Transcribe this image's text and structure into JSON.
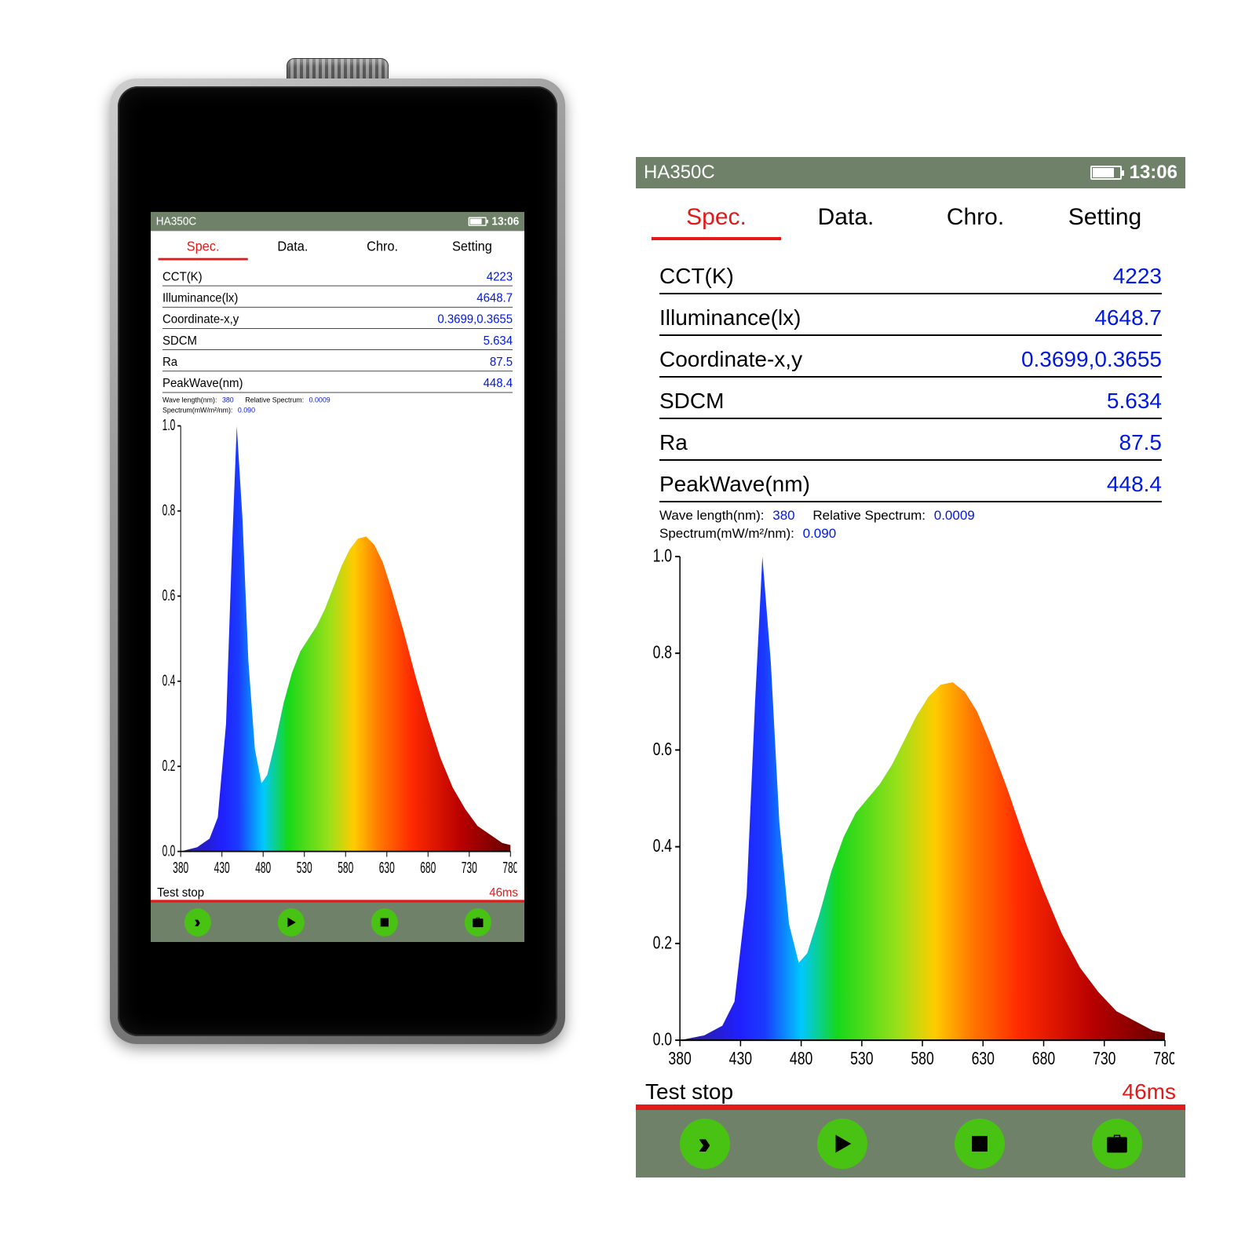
{
  "header": {
    "device_model": "HA350C",
    "battery_percent": 80,
    "clock": "13:06"
  },
  "colors": {
    "status_bar_bg": "#6f8168",
    "status_bar_text": "#ffffff",
    "tab_active": "#e21a1a",
    "tab_inactive": "#000000",
    "value_text": "#0018e0",
    "button_bg": "#49c313",
    "button_icon": "#000000",
    "test_underline": "#e21a1a",
    "device_face": "#000000",
    "device_shell_gradient": [
      "#cfcfcf",
      "#9b9b9b",
      "#7a7a7a",
      "#5e5e5e"
    ],
    "background": "#ffffff",
    "row_divider": "#000000"
  },
  "tabs": {
    "items": [
      "Spec.",
      "Data.",
      "Chro.",
      "Setting"
    ],
    "active_index": 0
  },
  "readings": [
    {
      "label": "CCT(K)",
      "value": "4223"
    },
    {
      "label": "Illuminance(lx)",
      "value": "4648.7"
    },
    {
      "label": "Coordinate-x,y",
      "value": "0.3699,0.3655"
    },
    {
      "label": "SDCM",
      "value": "5.634"
    },
    {
      "label": "Ra",
      "value": "87.5"
    },
    {
      "label": "PeakWave(nm)",
      "value": "448.4"
    }
  ],
  "mini_labels": {
    "wavelength_label": "Wave length(nm):",
    "wavelength_value": "380",
    "relative_spectrum_label": "Relative Spectrum:",
    "relative_spectrum_value": "0.0009",
    "spectrum_label": "Spectrum(mW/m²/nm):",
    "spectrum_value": "0.090"
  },
  "spectrum_chart": {
    "type": "area",
    "xlim": [
      380,
      780
    ],
    "ylim": [
      0,
      1.0
    ],
    "xtick_step": 50,
    "ytick_step": 0.2,
    "x_ticks": [
      380,
      430,
      480,
      530,
      580,
      630,
      680,
      730,
      780
    ],
    "y_ticks": [
      0.0,
      0.2,
      0.4,
      0.6,
      0.8,
      1.0
    ],
    "axis_color": "#000000",
    "axis_linewidth": 1.5,
    "tick_font_size_pt": 11,
    "area_gradient_stops": [
      {
        "nm": 380,
        "color": "#2e1b8a"
      },
      {
        "nm": 430,
        "color": "#2020ff"
      },
      {
        "nm": 450,
        "color": "#1a3aff"
      },
      {
        "nm": 480,
        "color": "#00c8ff"
      },
      {
        "nm": 510,
        "color": "#16d81a"
      },
      {
        "nm": 560,
        "color": "#9ae01a"
      },
      {
        "nm": 590,
        "color": "#ffcc00"
      },
      {
        "nm": 620,
        "color": "#ff7a00"
      },
      {
        "nm": 660,
        "color": "#ff2a00"
      },
      {
        "nm": 720,
        "color": "#b80000"
      },
      {
        "nm": 780,
        "color": "#660000"
      }
    ],
    "curve": [
      {
        "nm": 380,
        "y": 0.0
      },
      {
        "nm": 400,
        "y": 0.01
      },
      {
        "nm": 415,
        "y": 0.03
      },
      {
        "nm": 425,
        "y": 0.08
      },
      {
        "nm": 435,
        "y": 0.3
      },
      {
        "nm": 442,
        "y": 0.7
      },
      {
        "nm": 448,
        "y": 1.0
      },
      {
        "nm": 455,
        "y": 0.78
      },
      {
        "nm": 462,
        "y": 0.45
      },
      {
        "nm": 470,
        "y": 0.24
      },
      {
        "nm": 478,
        "y": 0.16
      },
      {
        "nm": 485,
        "y": 0.18
      },
      {
        "nm": 495,
        "y": 0.26
      },
      {
        "nm": 505,
        "y": 0.35
      },
      {
        "nm": 515,
        "y": 0.42
      },
      {
        "nm": 525,
        "y": 0.47
      },
      {
        "nm": 535,
        "y": 0.5
      },
      {
        "nm": 545,
        "y": 0.53
      },
      {
        "nm": 555,
        "y": 0.57
      },
      {
        "nm": 565,
        "y": 0.62
      },
      {
        "nm": 575,
        "y": 0.67
      },
      {
        "nm": 585,
        "y": 0.71
      },
      {
        "nm": 595,
        "y": 0.735
      },
      {
        "nm": 605,
        "y": 0.74
      },
      {
        "nm": 615,
        "y": 0.72
      },
      {
        "nm": 625,
        "y": 0.68
      },
      {
        "nm": 635,
        "y": 0.62
      },
      {
        "nm": 650,
        "y": 0.52
      },
      {
        "nm": 665,
        "y": 0.41
      },
      {
        "nm": 680,
        "y": 0.31
      },
      {
        "nm": 695,
        "y": 0.22
      },
      {
        "nm": 710,
        "y": 0.15
      },
      {
        "nm": 725,
        "y": 0.1
      },
      {
        "nm": 740,
        "y": 0.06
      },
      {
        "nm": 755,
        "y": 0.04
      },
      {
        "nm": 770,
        "y": 0.02
      },
      {
        "nm": 780,
        "y": 0.015
      }
    ]
  },
  "test_status": {
    "label": "Test stop",
    "duration": "46ms"
  },
  "buttons": [
    {
      "name": "skip-forward-button",
      "icon": "double-chevron-right-icon"
    },
    {
      "name": "play-button",
      "icon": "play-icon"
    },
    {
      "name": "stop-button",
      "icon": "stop-icon"
    },
    {
      "name": "save-button",
      "icon": "briefcase-icon"
    }
  ]
}
